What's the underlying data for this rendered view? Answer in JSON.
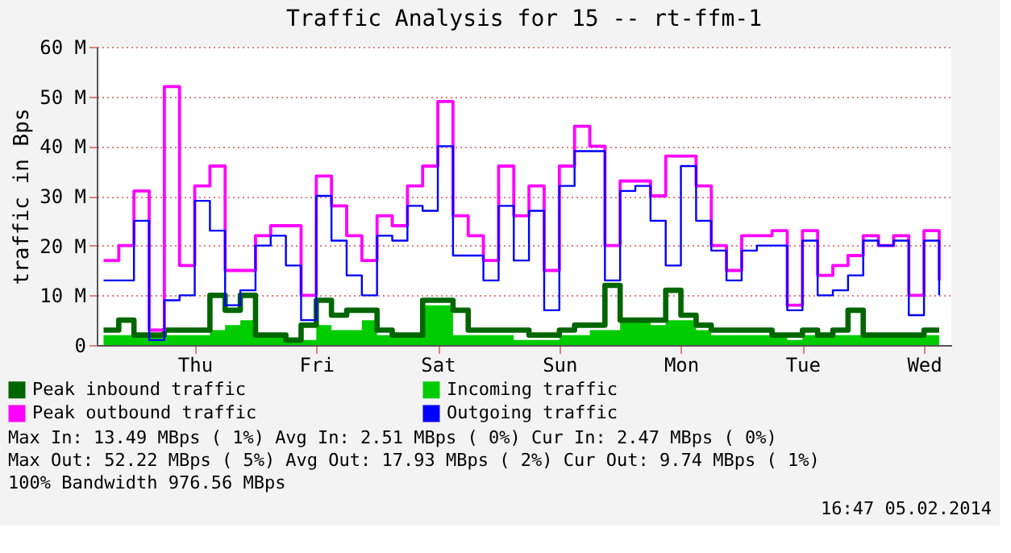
{
  "chart_data": {
    "type": "step",
    "title": "Traffic Analysis for 15 -- rt-ffm-1",
    "ylabel": "traffic in Bps",
    "categories": [
      null,
      null,
      null,
      null,
      null,
      null,
      "Thu",
      null,
      null,
      null,
      null,
      null,
      null,
      null,
      "Fri",
      null,
      null,
      null,
      null,
      null,
      null,
      null,
      "Sat",
      null,
      null,
      null,
      null,
      null,
      null,
      null,
      "Sun",
      null,
      null,
      null,
      null,
      null,
      null,
      null,
      "Mon",
      null,
      null,
      null,
      null,
      null,
      null,
      null,
      "Tue",
      null,
      null,
      null,
      null,
      null,
      null,
      null,
      "Wed",
      null
    ],
    "series": [
      {
        "name": "Peak inbound traffic",
        "color": "#006600",
        "values": [
          3,
          5,
          2,
          2,
          3,
          3,
          3,
          10,
          7,
          10,
          2,
          2,
          1,
          4,
          9,
          6,
          7,
          7,
          3,
          2,
          2,
          9,
          9,
          7,
          3,
          3,
          3,
          3,
          2,
          2,
          3,
          4,
          4,
          12,
          5,
          5,
          5,
          11,
          6,
          4,
          3,
          3,
          3,
          3,
          2,
          2,
          3,
          2,
          3,
          7,
          2,
          2,
          2,
          2,
          3,
          3
        ]
      },
      {
        "name": "Incoming traffic",
        "color": "#00cc00",
        "type": "area",
        "values": [
          2,
          2,
          2,
          2,
          2,
          2,
          2,
          3,
          4,
          5,
          2,
          2,
          1,
          1,
          4,
          3,
          3,
          5,
          2,
          2,
          2,
          8,
          8,
          2,
          2,
          2,
          2,
          1,
          1,
          1,
          2,
          2,
          3,
          3,
          5,
          5,
          4,
          5,
          5,
          3,
          2,
          2,
          2,
          2,
          2,
          1,
          2,
          2,
          2,
          2,
          2,
          2,
          2,
          2,
          2,
          3
        ]
      },
      {
        "name": "Peak outbound traffic",
        "color": "#ff00ff",
        "values": [
          17,
          20,
          31,
          3,
          52,
          16,
          32,
          36,
          15,
          15,
          22,
          24,
          24,
          10,
          34,
          28,
          22,
          17,
          26,
          24,
          32,
          36,
          49,
          26,
          22,
          17,
          36,
          26,
          32,
          15,
          36,
          44,
          40,
          20,
          33,
          33,
          30,
          38,
          38,
          32,
          20,
          15,
          22,
          22,
          23,
          8,
          23,
          14,
          16,
          18,
          22,
          20,
          22,
          10,
          23,
          13
        ]
      },
      {
        "name": "Outgoing traffic",
        "color": "#0000ff",
        "values": [
          13,
          13,
          25,
          1,
          9,
          10,
          29,
          23,
          8,
          11,
          20,
          22,
          16,
          5,
          30,
          21,
          14,
          10,
          22,
          21,
          28,
          27,
          40,
          18,
          18,
          13,
          28,
          17,
          27,
          7,
          32,
          39,
          39,
          13,
          31,
          32,
          25,
          16,
          36,
          25,
          19,
          13,
          19,
          20,
          20,
          7,
          21,
          10,
          11,
          14,
          21,
          20,
          21,
          6,
          21,
          10
        ]
      }
    ],
    "ylim": [
      0,
      60
    ],
    "yticks": [
      0,
      {
        "value": 10,
        "label": "10 M"
      },
      {
        "value": 20,
        "label": "20 M"
      },
      {
        "value": 30,
        "label": "30 M"
      },
      {
        "value": 40,
        "label": "40 M"
      },
      {
        "value": 50,
        "label": "50 M"
      },
      {
        "value": 60,
        "label": "60 M"
      }
    ],
    "grid": "y",
    "legend": "bottom left",
    "marker": "none",
    "line_style": "solid",
    "annotations": [
      "Max In:  13.49 MBps ( 1%)  Avg In:   2.51 MBps ( 0%)  Cur In:   2.47 MBps ( 0%)",
      "Max Out: 52.22 MBps ( 5%)  Avg Out: 17.93 MBps ( 2%)  Cur Out:  9.74 MBps ( 1%)",
      "100% Bandwidth 976.56 MBps",
      "16:47 05.02.2014"
    ]
  }
}
